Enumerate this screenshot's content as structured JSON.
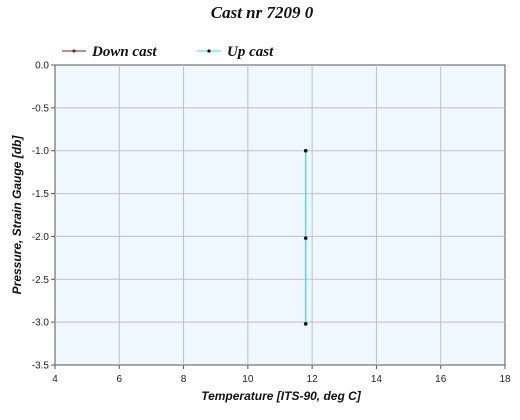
{
  "chart_data": {
    "type": "line",
    "title": "Cast nr 7209 0",
    "xlabel": "Temperature [ITS-90, deg C]",
    "ylabel": "Pressure, Strain Gauge [db]",
    "xlim": [
      4,
      18
    ],
    "ylim": [
      -3.5,
      0.0
    ],
    "x_ticks": [
      "4",
      "6",
      "8",
      "10",
      "12",
      "14",
      "16",
      "18"
    ],
    "y_ticks": [
      "0.0",
      "-0.5",
      "-1.0",
      "-1.5",
      "-2.0",
      "-2.5",
      "-3.0",
      "-3.5"
    ],
    "grid": true,
    "legend_position": "top",
    "series": [
      {
        "name": "Down cast",
        "color": "#8b1a1a",
        "x": [],
        "y": []
      },
      {
        "name": "Up cast",
        "color": "#33e0e0",
        "x": [
          11.8,
          11.8,
          11.8
        ],
        "y": [
          -1.0,
          -2.02,
          -3.02
        ]
      }
    ]
  }
}
